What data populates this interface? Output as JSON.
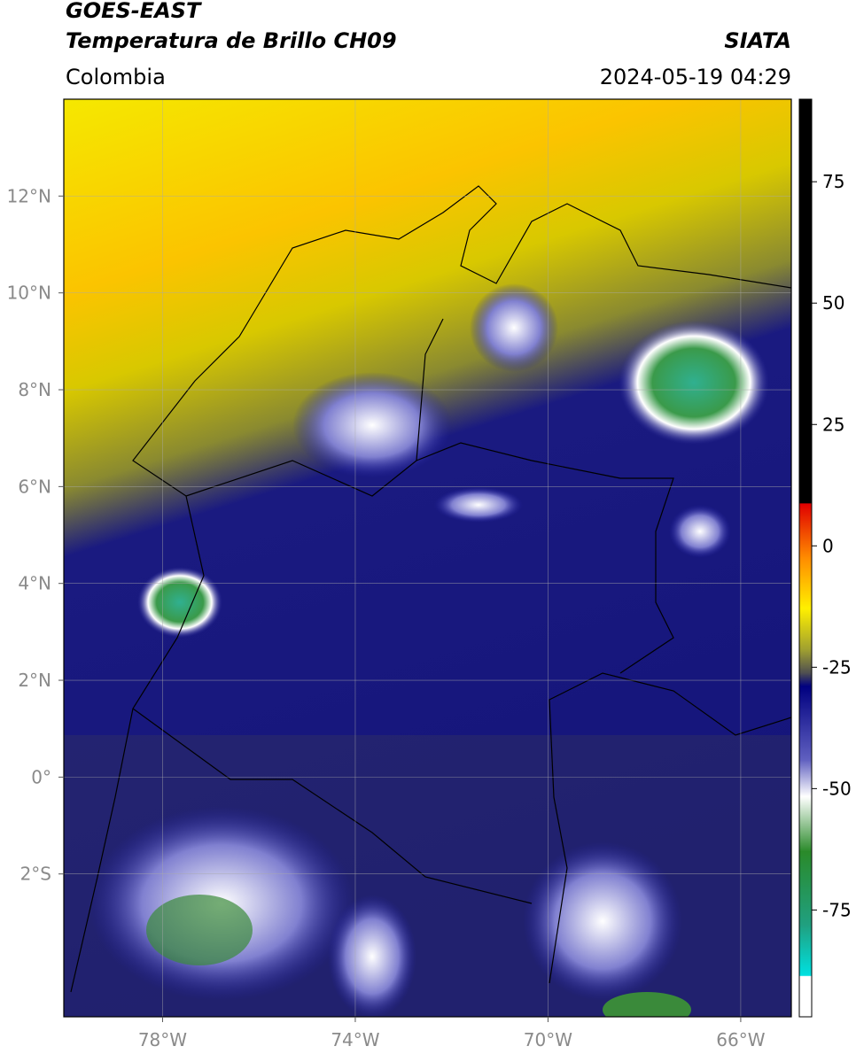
{
  "header": {
    "title": "GOES-EAST",
    "subtitle": "Temperatura de Brillo CH09",
    "source": "SIATA",
    "region": "Colombia",
    "datetime": "2024-05-19 04:29"
  },
  "map": {
    "lonlim": [
      -80.05,
      -64.95
    ],
    "latlim": [
      -4.95,
      14
    ],
    "lon_ticks": [
      {
        "value": -78,
        "label": "78°W"
      },
      {
        "value": -74,
        "label": "74°W"
      },
      {
        "value": -70,
        "label": "70°W"
      },
      {
        "value": -66,
        "label": "66°W"
      }
    ],
    "lat_ticks": [
      {
        "value": 12,
        "label": "12°N"
      },
      {
        "value": 10,
        "label": "10°N"
      },
      {
        "value": 8,
        "label": "8°N"
      },
      {
        "value": 6,
        "label": "6°N"
      },
      {
        "value": 4,
        "label": "4°N"
      },
      {
        "value": 2,
        "label": "2°N"
      },
      {
        "value": 0,
        "label": "0°"
      },
      {
        "value": -2,
        "label": "2°S"
      }
    ]
  },
  "colorbar": {
    "lim": [
      -97,
      92
    ],
    "ticks": [
      75,
      50,
      25,
      0,
      -25,
      -50,
      -75
    ]
  }
}
